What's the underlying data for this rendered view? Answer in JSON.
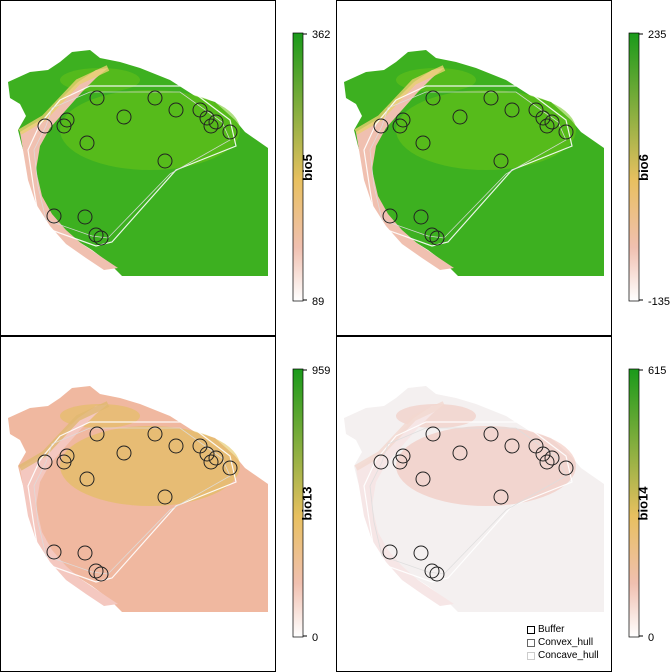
{
  "panels": [
    {
      "id": "bio5",
      "title": "bio5",
      "max": "362",
      "min": "89",
      "theme": "green"
    },
    {
      "id": "bio6",
      "title": "bio6",
      "max": "235",
      "min": "-135",
      "theme": "green"
    },
    {
      "id": "bio13",
      "title": "bio13",
      "max": "959",
      "min": "0",
      "theme": "tan"
    },
    {
      "id": "bio14",
      "title": "bio14",
      "max": "615",
      "min": "0",
      "theme": "white"
    }
  ],
  "legend": {
    "items": [
      {
        "label": "Buffer",
        "color": "#000000"
      },
      {
        "label": "Convex_hull",
        "color": "#666666"
      },
      {
        "label": "Concave_hull",
        "color": "#cccccc"
      }
    ]
  },
  "colors": {
    "scale_high": "#1a9a1a",
    "scale_mid": "#e8c060",
    "scale_low": "#ffffff"
  }
}
